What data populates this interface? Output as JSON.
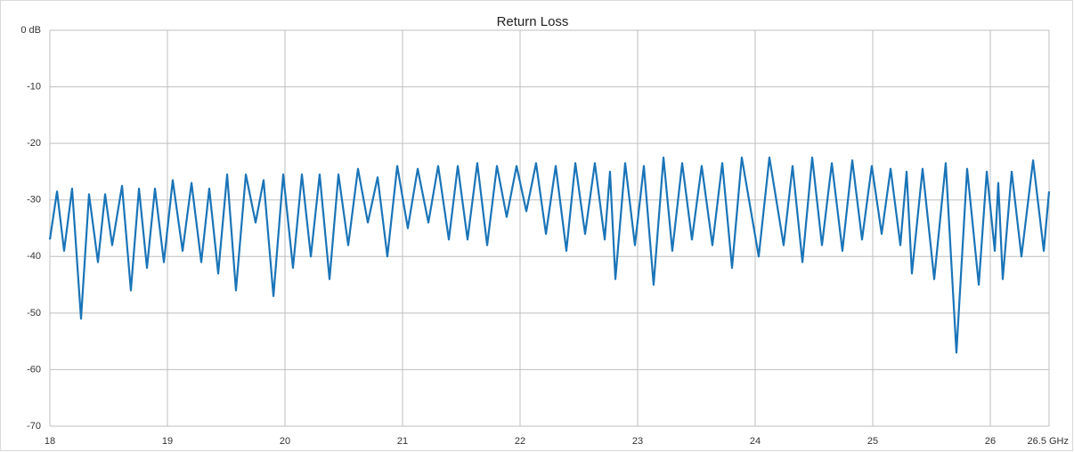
{
  "chart_data": {
    "type": "line",
    "title": "Return Loss",
    "x": [
      18.0,
      18.061,
      18.121,
      18.189,
      18.265,
      18.333,
      18.409,
      18.47,
      18.53,
      18.614,
      18.689,
      18.758,
      18.826,
      18.894,
      18.97,
      19.045,
      19.129,
      19.205,
      19.288,
      19.356,
      19.432,
      19.508,
      19.583,
      19.667,
      19.75,
      19.818,
      19.902,
      19.985,
      20.068,
      20.144,
      20.22,
      20.295,
      20.379,
      20.455,
      20.538,
      20.621,
      20.705,
      20.788,
      20.871,
      20.955,
      21.045,
      21.129,
      21.22,
      21.303,
      21.394,
      21.47,
      21.553,
      21.636,
      21.72,
      21.803,
      21.886,
      21.97,
      22.053,
      22.136,
      22.22,
      22.303,
      22.394,
      22.47,
      22.553,
      22.636,
      22.72,
      22.765,
      22.811,
      22.894,
      22.977,
      23.053,
      23.136,
      23.22,
      23.295,
      23.379,
      23.462,
      23.545,
      23.636,
      23.72,
      23.803,
      23.886,
      24.03,
      24.121,
      24.242,
      24.318,
      24.402,
      24.485,
      24.568,
      24.652,
      24.742,
      24.826,
      24.909,
      24.992,
      25.076,
      25.152,
      25.235,
      25.288,
      25.333,
      25.424,
      25.523,
      25.621,
      25.712,
      25.803,
      25.902,
      25.97,
      26.038,
      26.068,
      26.106,
      26.182,
      26.265,
      26.364,
      26.455,
      26.5
    ],
    "series": [
      {
        "name": "Return Loss",
        "color": "#1a74b8",
        "values": [
          -37,
          -28.5,
          -39,
          -28,
          -51,
          -29,
          -41,
          -29,
          -38,
          -27.5,
          -46,
          -28,
          -42,
          -28,
          -41,
          -26.5,
          -39,
          -27,
          -41,
          -28,
          -43,
          -25.5,
          -46,
          -25.5,
          -34,
          -26.5,
          -47,
          -25.5,
          -42,
          -25.5,
          -40,
          -25.5,
          -44,
          -25.5,
          -38,
          -24.5,
          -34,
          -26,
          -40,
          -24,
          -35,
          -24.5,
          -34,
          -24,
          -37,
          -24,
          -37,
          -23.5,
          -38,
          -24,
          -33,
          -24,
          -32,
          -23.5,
          -36,
          -24,
          -39,
          -23.5,
          -36,
          -23.5,
          -37,
          -25,
          -44,
          -23.5,
          -38,
          -24,
          -45,
          -22.5,
          -39,
          -23.5,
          -37,
          -24,
          -38,
          -23.5,
          -42,
          -22.5,
          -40,
          -22.5,
          -38,
          -24,
          -41,
          -22.5,
          -38,
          -23.5,
          -39,
          -23,
          -37,
          -24,
          -36,
          -24.5,
          -38,
          -25,
          -43,
          -24.5,
          -44,
          -23.5,
          -57,
          -24.5,
          -45,
          -25,
          -39,
          -27,
          -44,
          -25,
          -40,
          -23,
          -39,
          -28.5
        ]
      }
    ],
    "xlim": [
      18,
      26.5
    ],
    "ylim": [
      -70,
      0
    ],
    "xticks": [
      18,
      19,
      20,
      21,
      22,
      23,
      24,
      25,
      26,
      {
        "value": 26.5,
        "label": "26.5 GHz"
      }
    ],
    "yticks": [
      {
        "value": 0,
        "label": "0 dB"
      },
      -10,
      -20,
      -30,
      -40,
      -50,
      -60,
      -70
    ],
    "grid": true
  }
}
